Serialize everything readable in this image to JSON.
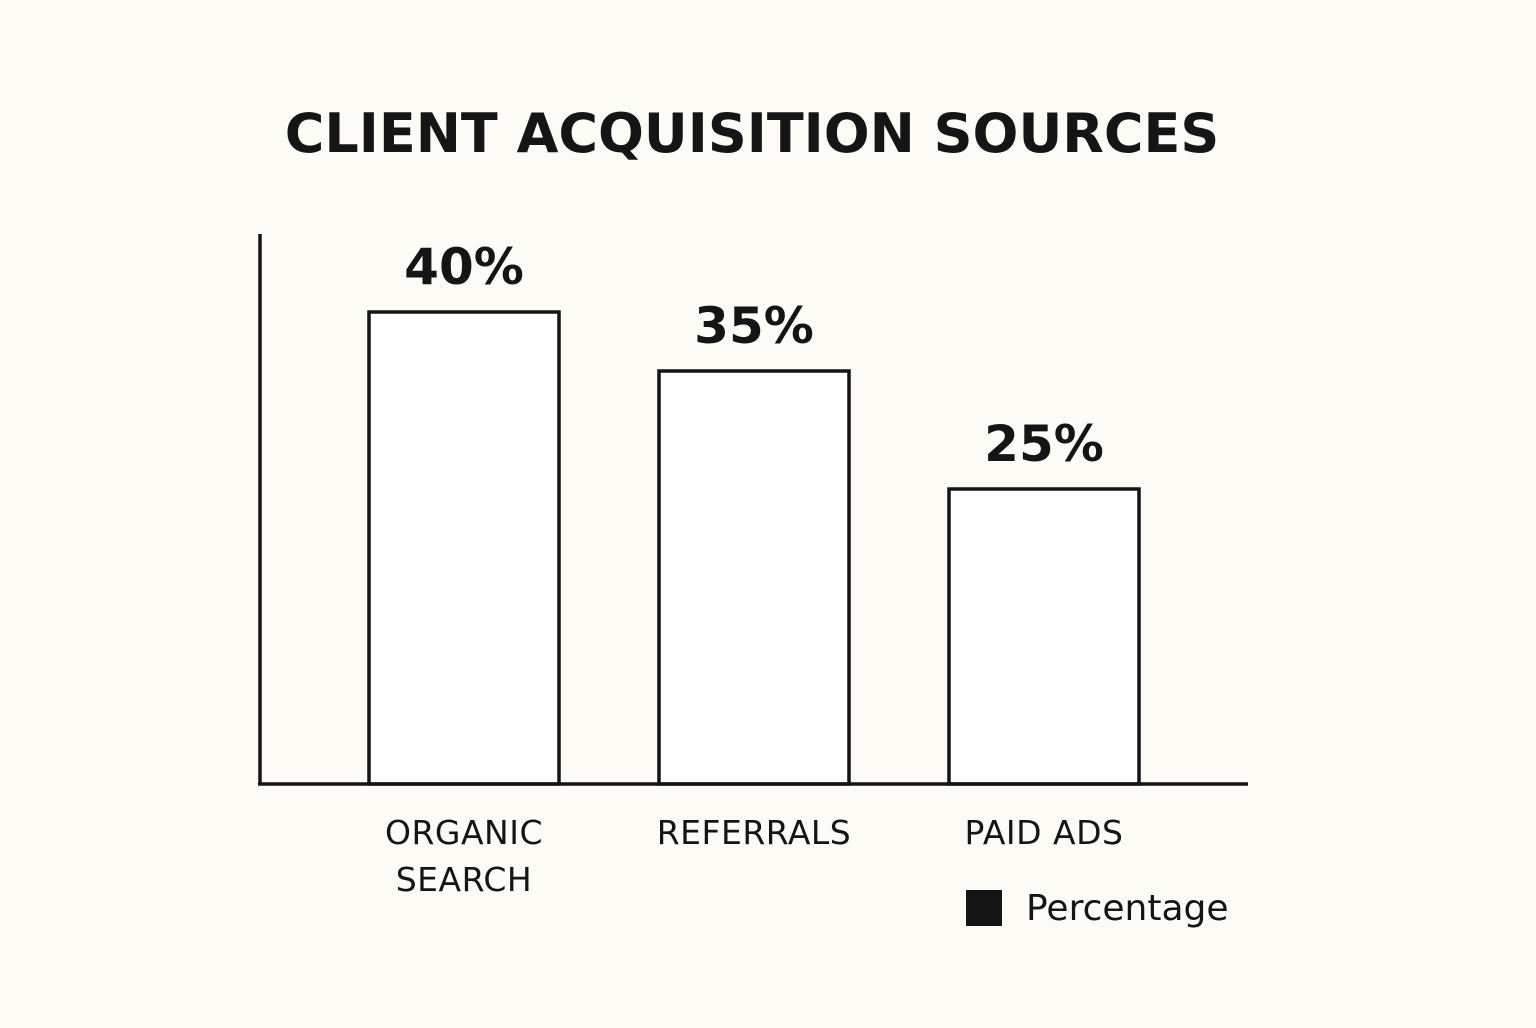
{
  "chart_data": {
    "type": "bar",
    "title": "CLIENT ACQUISITION SOURCES",
    "xlabel": "",
    "ylabel": "",
    "categories": [
      "ORGANIC SEARCH",
      "REFERRALS",
      "PAID ADS"
    ],
    "series": [
      {
        "name": "Percentage",
        "values": [
          40,
          35,
          25
        ],
        "labels": [
          "40%",
          "35%",
          "25%"
        ]
      }
    ],
    "unit": "%",
    "ylim": [
      0,
      47
    ],
    "grid": false,
    "legend_position": "bottom-right",
    "colors": {
      "background": "#fcfbf6",
      "bar_fill": "#ffffff",
      "stroke": "#151515",
      "legend_swatch": "#151515"
    }
  }
}
